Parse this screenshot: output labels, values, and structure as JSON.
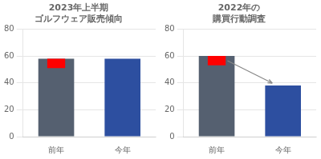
{
  "chart_data": [
    {
      "type": "bar",
      "title": "2023年上半期\nゴルフウェア販売傾向",
      "categories": [
        "前年",
        "今年"
      ],
      "values": [
        58,
        58
      ],
      "colors": [
        "#556070",
        "#2d4fa0"
      ],
      "cap": {
        "values": [
          7,
          null
        ],
        "color": "#ff0000"
      },
      "ylim": [
        0,
        80
      ],
      "yticks": [
        0,
        20,
        40,
        60,
        80
      ],
      "grid": true
    },
    {
      "type": "bar",
      "title": "2022年の\n購買行動調査",
      "categories": [
        "前年",
        "今年"
      ],
      "values": [
        60,
        38
      ],
      "colors": [
        "#556070",
        "#2d4fa0"
      ],
      "cap": {
        "values": [
          7,
          null
        ],
        "color": "#ff0000"
      },
      "ylim": [
        0,
        80
      ],
      "yticks": [
        0,
        20,
        40,
        60,
        80
      ],
      "grid": true,
      "arrow": [
        "前年",
        "今年"
      ]
    }
  ]
}
